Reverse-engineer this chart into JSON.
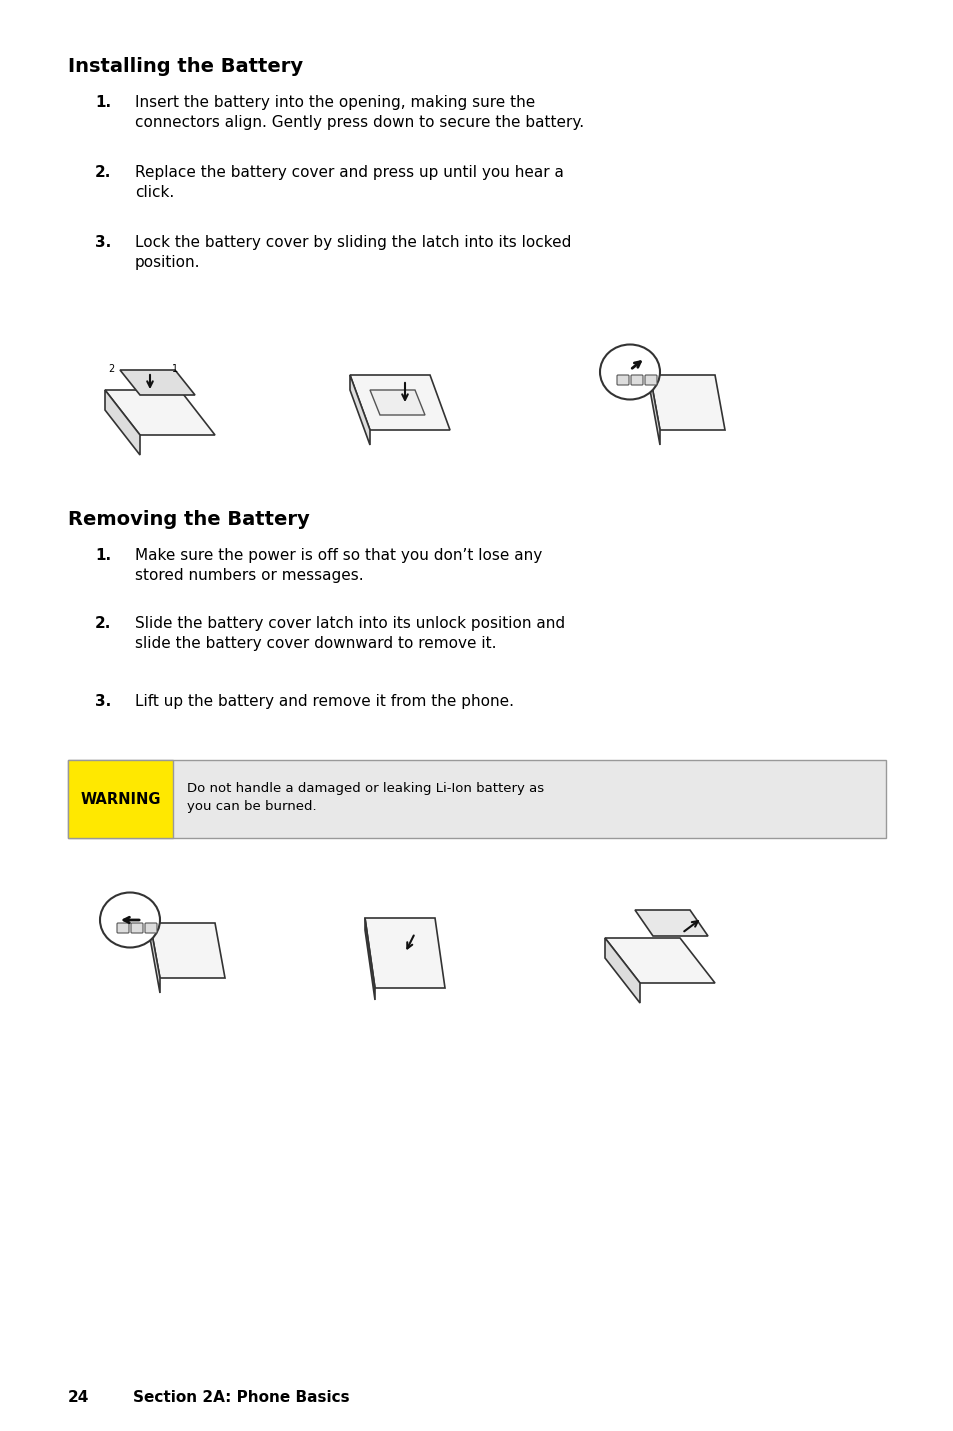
{
  "bg_color": "#ffffff",
  "section1_title": "Installing the Battery",
  "section1_steps": [
    [
      "1.",
      "Insert the battery into the opening, making sure the\nconnectors align. Gently press down to secure the battery."
    ],
    [
      "2.",
      "Replace the battery cover and press up until you hear a\nclick."
    ],
    [
      "3.",
      "Lock the battery cover by sliding the latch into its locked\nposition."
    ]
  ],
  "section2_title": "Removing the Battery",
  "section2_steps": [
    [
      "1.",
      "Make sure the power is off so that you don’t lose any\nstored numbers or messages."
    ],
    [
      "2.",
      "Slide the battery cover latch into its unlock position and\nslide the battery cover downward to remove it."
    ],
    [
      "3.",
      "Lift up the battery and remove it from the phone."
    ]
  ],
  "warning_label": "WARNING",
  "warning_text": "Do not handle a damaged or leaking Li-Ion battery as\nyou can be burned.",
  "warning_bg": "#e8e8e8",
  "warning_label_bg": "#FFE800",
  "footer_num": "24",
  "footer_text": "Section 2A: Phone Basics",
  "title_fontsize": 14,
  "body_fontsize": 11,
  "num_fontsize": 11,
  "footer_fontsize": 11
}
